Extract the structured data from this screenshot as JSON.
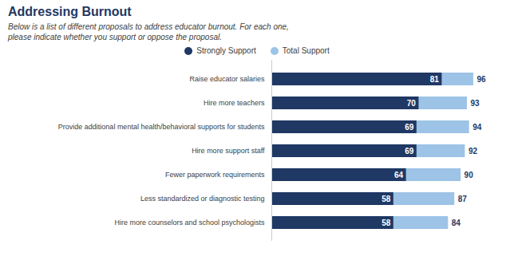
{
  "chart_data": {
    "type": "bar",
    "orientation": "horizontal",
    "title": "Addressing Burnout",
    "subtitle": [
      "Below is a list of different proposals to address educator burnout.  For each one,",
      "please indicate whether you support or oppose the proposal."
    ],
    "categories": [
      "Raise educator salaries",
      "Hire more teachers",
      "Provide additional mental health/behavioral supports for students",
      "Hire more support staff",
      "Fewer paperwork requirements",
      "Less standardized or diagnostic testing",
      "Hire more counselors and school psychologists"
    ],
    "series": [
      {
        "name": "Strongly Support",
        "color": "#1f3864",
        "values": [
          81,
          70,
          69,
          69,
          64,
          58,
          58
        ]
      },
      {
        "name": "Total Support",
        "color": "#9dc3e6",
        "values": [
          96,
          93,
          94,
          92,
          90,
          87,
          84
        ]
      }
    ],
    "stacked": false,
    "xlim": [
      0,
      104
    ],
    "data_labels": true,
    "tick_labels": "y",
    "grid": false,
    "legend": "top"
  }
}
